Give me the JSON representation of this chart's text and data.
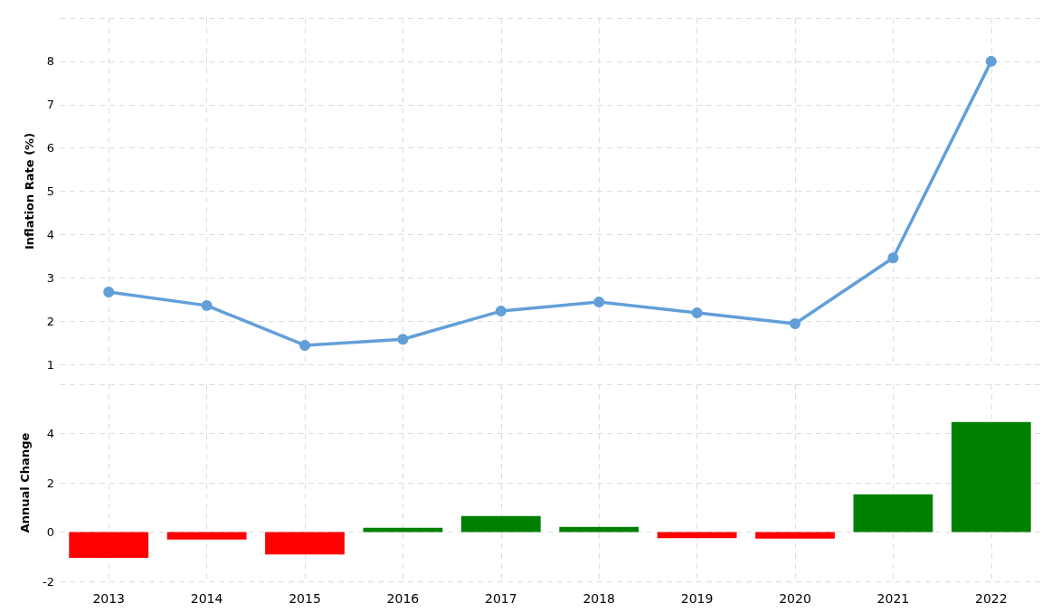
{
  "chart_data": [
    {
      "type": "line",
      "ylabel": "Inflation Rate (%)",
      "categories": [
        null,
        null,
        null,
        null,
        null,
        null,
        null,
        null,
        null,
        null
      ],
      "values": [
        2.67,
        2.36,
        1.44,
        1.58,
        2.23,
        2.44,
        2.19,
        1.94,
        3.46,
        8.0
      ],
      "color": "#629fd9",
      "ylim": [
        1,
        9
      ],
      "yticks": [
        1,
        2,
        3,
        4,
        5,
        6,
        7,
        8,
        {
          "value": 9,
          "label": null
        }
      ],
      "grid": true,
      "tick_labels": "y",
      "marker": "circle"
    },
    {
      "type": "bar",
      "ylabel": "Annual Change",
      "categories": [
        "2013",
        "2014",
        "2015",
        "2016",
        "2017",
        "2018",
        "2019",
        "2020",
        "2021",
        "2022"
      ],
      "values": [
        -1.05,
        -0.3,
        -0.91,
        0.17,
        0.65,
        0.21,
        -0.25,
        -0.27,
        1.53,
        4.47
      ],
      "colors": [
        "#ff0000",
        "#ff0000",
        "#ff0000",
        "#008000",
        "#008000",
        "#008000",
        "#ff0000",
        "#ff0000",
        "#008000",
        "#008000"
      ],
      "ylim": [
        -2,
        6
      ],
      "yticks": [
        -2,
        0,
        2,
        4,
        {
          "value": 6,
          "label": null
        }
      ],
      "grid": true
    }
  ]
}
